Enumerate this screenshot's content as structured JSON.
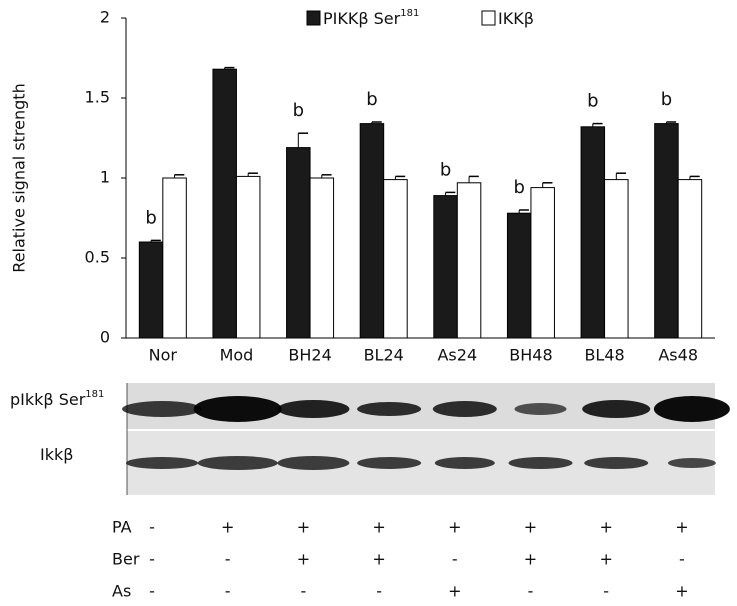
{
  "chart_data": {
    "type": "bar",
    "y_label": "Relative signal strength",
    "categories": [
      "Nor",
      "Mod",
      "BH24",
      "BL24",
      "As24",
      "BH48",
      "BL48",
      "As48"
    ],
    "series": [
      {
        "name": "PIKKβ Ser",
        "name_superscript": "181",
        "color": "#1a1a1a",
        "values": [
          0.6,
          1.68,
          1.19,
          1.34,
          0.89,
          0.78,
          1.32,
          1.34
        ],
        "errors": [
          0.01,
          0.01,
          0.09,
          0.01,
          0.02,
          0.02,
          0.02,
          0.01
        ],
        "annotations": [
          "b",
          null,
          "b",
          "b",
          "b",
          "b",
          "b",
          "b"
        ]
      },
      {
        "name": "IKKβ",
        "color": "#ffffff",
        "values": [
          1.0,
          1.01,
          1.0,
          0.99,
          0.97,
          0.94,
          0.99,
          0.99
        ],
        "errors": [
          0.02,
          0.02,
          0.02,
          0.02,
          0.04,
          0.03,
          0.04,
          0.02
        ]
      }
    ],
    "ylim": [
      0,
      2
    ],
    "yticks": [
      0,
      0.5,
      1,
      1.5,
      2
    ],
    "grid": false,
    "legend": "top"
  },
  "blot": {
    "rows": [
      {
        "label": "pIkkβ Ser",
        "label_superscript": "181"
      },
      {
        "label": "Ikkβ"
      }
    ]
  },
  "treatment_table": {
    "rows": [
      {
        "label": "PA",
        "cells": [
          "-",
          "+",
          "+",
          "+",
          "+",
          "+",
          "+",
          "+"
        ]
      },
      {
        "label": "Ber",
        "cells": [
          "-",
          "-",
          "+",
          "+",
          "-",
          "+",
          "+",
          "-"
        ]
      },
      {
        "label": "As",
        "cells": [
          "-",
          "-",
          "-",
          "-",
          "+",
          "-",
          "-",
          "+"
        ]
      }
    ]
  }
}
